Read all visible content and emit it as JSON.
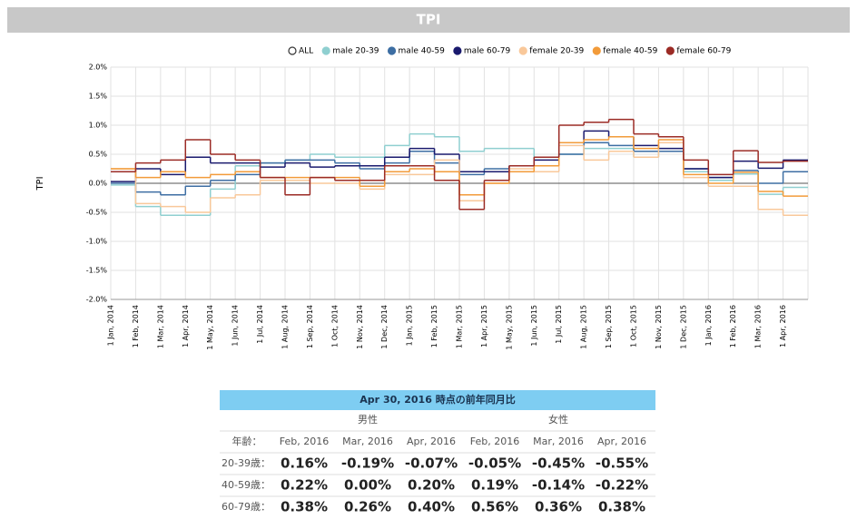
{
  "chart_data": {
    "type": "step",
    "title": "TPI",
    "y_label": "TPI",
    "categories": [
      "1 Jan, 2014",
      "1 Feb, 2014",
      "1 Mar, 2014",
      "1 Apr, 2014",
      "1 May, 2014",
      "1 Jun, 2014",
      "1 Jul, 2014",
      "1 Aug, 2014",
      "1 Sep, 2014",
      "1 Oct, 2014",
      "1 Nov, 2014",
      "1 Dec, 2014",
      "1 Jan, 2015",
      "1 Feb, 2015",
      "1 Mar, 2015",
      "1 Apr, 2015",
      "1 May, 2015",
      "1 Jun, 2015",
      "1 Jul, 2015",
      "1 Aug, 2015",
      "1 Sep, 2015",
      "1 Oct, 2015",
      "1 Nov, 2015",
      "1 Dec, 2015",
      "1 Jan, 2016",
      "1 Feb, 2016",
      "1 Mar, 2016",
      "1 Apr, 2016"
    ],
    "ylim": [
      -2.0,
      2.0
    ],
    "yticks": [
      {
        "value": -2.0,
        "label": "-2.0%"
      },
      {
        "value": -1.5,
        "label": "-1.5%"
      },
      {
        "value": -1.0,
        "label": "-1.0%"
      },
      {
        "value": -0.5,
        "label": "-0.5%"
      },
      {
        "value": 0,
        "label": "0.0%"
      },
      {
        "value": 0.5,
        "label": "0.5%"
      },
      {
        "value": 1.0,
        "label": "1.0%"
      },
      {
        "value": 1.5,
        "label": "1.5%"
      },
      {
        "value": 2.0,
        "label": "2.0%"
      }
    ],
    "grid": true,
    "series": [
      {
        "name": "ALL",
        "color": "#333333",
        "visible": false,
        "values": [
          null,
          null,
          null,
          null,
          null,
          null,
          null,
          null,
          null,
          null,
          null,
          null,
          null,
          null,
          null,
          null,
          null,
          null,
          null,
          null,
          null,
          null,
          null,
          null,
          null,
          null,
          null,
          null
        ]
      },
      {
        "name": "male 20-39",
        "color": "#8fcfd0",
        "values": [
          -0.03,
          -0.4,
          -0.55,
          -0.55,
          -0.1,
          0.3,
          0.35,
          0.4,
          0.5,
          0.45,
          0.45,
          0.65,
          0.85,
          0.8,
          0.55,
          0.6,
          0.6,
          0.45,
          0.5,
          0.6,
          0.6,
          0.45,
          0.6,
          0.2,
          0.05,
          0.16,
          -0.19,
          -0.07
        ]
      },
      {
        "name": "male 40-59",
        "color": "#3d6ea3",
        "values": [
          0.0,
          -0.15,
          -0.2,
          -0.05,
          0.05,
          0.15,
          0.35,
          0.4,
          0.4,
          0.35,
          0.25,
          0.35,
          0.55,
          0.35,
          0.15,
          0.25,
          0.3,
          0.45,
          0.5,
          0.7,
          0.65,
          0.55,
          0.55,
          0.25,
          0.1,
          0.22,
          0.0,
          0.2
        ]
      },
      {
        "name": "male 60-79",
        "color": "#1a1a6e",
        "values": [
          0.03,
          0.25,
          0.15,
          0.45,
          0.35,
          0.35,
          0.28,
          0.35,
          0.28,
          0.3,
          0.3,
          0.45,
          0.6,
          0.5,
          0.2,
          0.2,
          0.3,
          0.4,
          0.7,
          0.9,
          0.8,
          0.65,
          0.6,
          0.25,
          0.1,
          0.38,
          0.26,
          0.4
        ]
      },
      {
        "name": "female 20-39",
        "color": "#f9c89a",
        "values": [
          0.25,
          -0.35,
          -0.4,
          -0.5,
          -0.25,
          -0.2,
          0.05,
          0.05,
          0.0,
          0.0,
          -0.1,
          0.15,
          0.15,
          0.4,
          -0.3,
          0.0,
          0.25,
          0.2,
          0.65,
          0.4,
          0.55,
          0.45,
          0.7,
          0.1,
          -0.05,
          -0.05,
          -0.45,
          -0.55
        ]
      },
      {
        "name": "female 40-59",
        "color": "#f29b3a",
        "values": [
          0.25,
          0.1,
          0.2,
          0.1,
          0.15,
          0.2,
          0.1,
          0.1,
          0.1,
          0.1,
          -0.05,
          0.2,
          0.25,
          0.2,
          -0.2,
          0.0,
          0.2,
          0.3,
          0.7,
          0.75,
          0.8,
          0.6,
          0.75,
          0.15,
          0.0,
          0.19,
          -0.14,
          -0.22
        ]
      },
      {
        "name": "female 60-79",
        "color": "#9b2b25",
        "values": [
          0.2,
          0.35,
          0.4,
          0.75,
          0.5,
          0.4,
          0.1,
          -0.2,
          0.1,
          0.05,
          0.05,
          0.3,
          0.3,
          0.05,
          -0.45,
          0.05,
          0.3,
          0.45,
          1.0,
          1.05,
          1.1,
          0.85,
          0.8,
          0.4,
          0.15,
          0.56,
          0.36,
          0.38
        ]
      }
    ]
  },
  "table": {
    "title": "Apr 30, 2016 時点の前年同月比",
    "groups": [
      "男性",
      "女性"
    ],
    "corner": "年齢：",
    "columns": [
      "Feb, 2016",
      "Mar, 2016",
      "Apr, 2016",
      "Feb, 2016",
      "Mar, 2016",
      "Apr, 2016"
    ],
    "rows": [
      {
        "label": "20-39歳：",
        "cells": [
          "0.16%",
          "-0.19%",
          "-0.07%",
          "-0.05%",
          "-0.45%",
          "-0.55%"
        ]
      },
      {
        "label": "40-59歳：",
        "cells": [
          "0.22%",
          "0.00%",
          "0.20%",
          "0.19%",
          "-0.14%",
          "-0.22%"
        ]
      },
      {
        "label": "60-79歳：",
        "cells": [
          "0.38%",
          "0.26%",
          "0.40%",
          "0.56%",
          "0.36%",
          "0.38%"
        ]
      }
    ]
  }
}
